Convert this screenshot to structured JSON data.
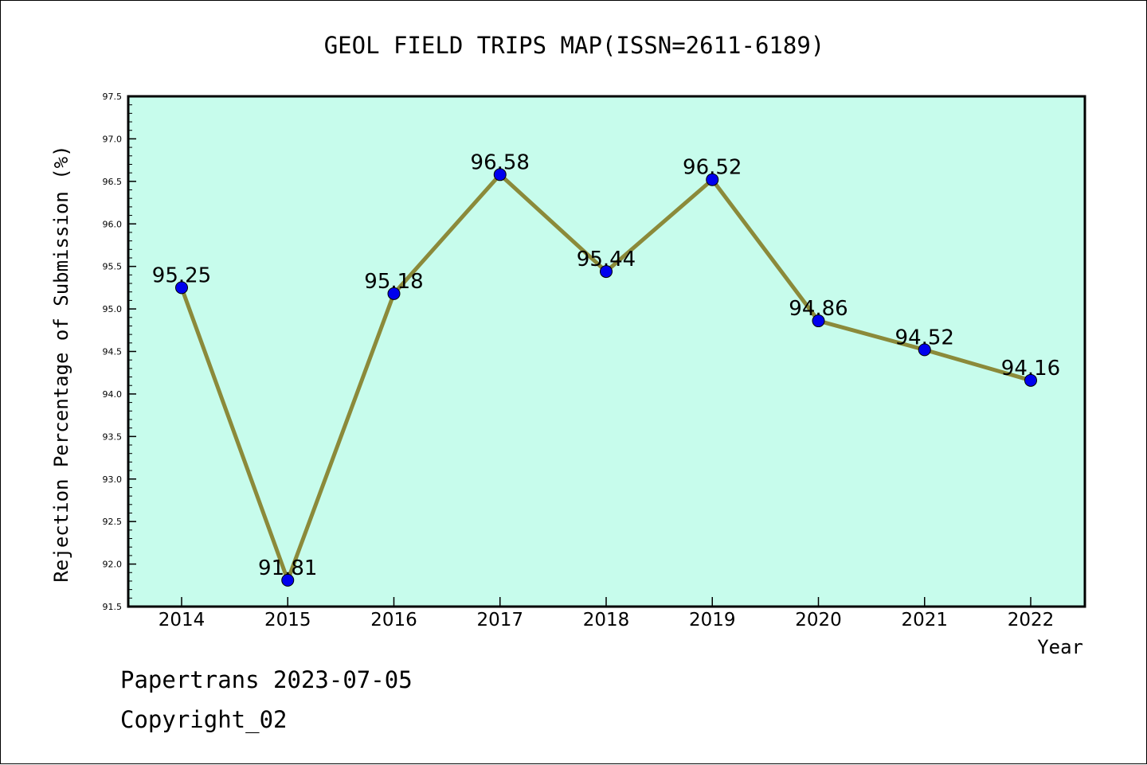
{
  "footer": {
    "line1": "Papertrans 2023-07-05",
    "line2": "Copyright_02"
  },
  "chart_data": {
    "type": "line",
    "title": "GEOL FIELD TRIPS MAP(ISSN=2611-6189)",
    "xlabel": "Year",
    "ylabel": "Rejection Percentage of Submission (%)",
    "categories": [
      "2014",
      "2015",
      "2016",
      "2017",
      "2018",
      "2019",
      "2020",
      "2021",
      "2022"
    ],
    "series": [
      {
        "values": [
          95.25,
          91.81,
          95.18,
          96.58,
          95.44,
          96.52,
          94.86,
          94.52,
          94.16
        ],
        "labels": [
          "95.25",
          "91.81",
          "95.18",
          "96.58",
          "95.44",
          "96.52",
          "94.86",
          "94.52",
          "94.16"
        ],
        "line_color": "#8b8a3a",
        "marker_color": "#0000ee"
      }
    ],
    "ylim": [
      91.5,
      97.5
    ],
    "yticks": [
      "91.5",
      "92.0",
      "92.5",
      "93.0",
      "93.5",
      "94.0",
      "94.5",
      "95.0",
      "95.5",
      "96.0",
      "96.5",
      "97.0",
      "97.5"
    ],
    "plot_background": "#c7fcec",
    "grid": false,
    "legend": "none"
  }
}
